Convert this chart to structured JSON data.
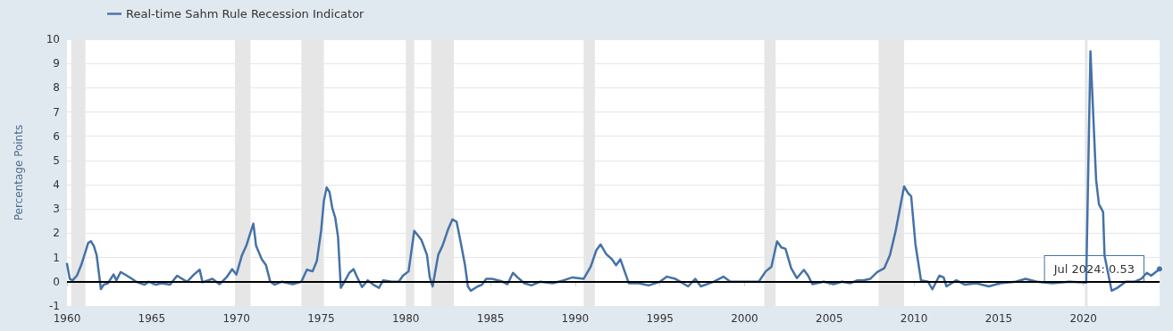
{
  "chart_data": {
    "type": "line",
    "ylabel": "Percentage Points",
    "legend": "top left",
    "grid": "y",
    "marker": "none",
    "line_style": "solid",
    "xlim": [
      "1960-01",
      "2024-07"
    ],
    "xticks": [
      "1960",
      "1965",
      "1970",
      "1975",
      "1980",
      "1985",
      "1990",
      "1995",
      "2000",
      "2005",
      "2010",
      "2015",
      "2020"
    ],
    "ylim": [
      -1,
      10
    ],
    "yticks": [
      -1,
      0,
      1,
      2,
      3,
      4,
      5,
      6,
      7,
      8,
      9,
      10
    ],
    "ref_lines": [
      {
        "axis": "y",
        "value": 0,
        "color": "#000000"
      }
    ],
    "bands": [
      {
        "axis": "x",
        "from": "1960-04",
        "to": "1961-02",
        "color": "#e6e6e6"
      },
      {
        "axis": "x",
        "from": "1969-12",
        "to": "1970-11",
        "color": "#e6e6e6"
      },
      {
        "axis": "x",
        "from": "1973-11",
        "to": "1975-03",
        "color": "#e6e6e6"
      },
      {
        "axis": "x",
        "from": "1980-01",
        "to": "1980-07",
        "color": "#e6e6e6"
      },
      {
        "axis": "x",
        "from": "1981-07",
        "to": "1982-11",
        "color": "#e6e6e6"
      },
      {
        "axis": "x",
        "from": "1990-07",
        "to": "1991-03",
        "color": "#e6e6e6"
      },
      {
        "axis": "x",
        "from": "2001-03",
        "to": "2001-11",
        "color": "#e6e6e6"
      },
      {
        "axis": "x",
        "from": "2007-12",
        "to": "2009-06",
        "color": "#e6e6e6"
      },
      {
        "axis": "x",
        "from": "2020-02",
        "to": "2020-04",
        "color": "#e6e6e6"
      }
    ],
    "annotations": [
      {
        "text": "Jul 2024: 0.53",
        "x": "2024-07",
        "y": 0.53
      }
    ],
    "x": [
      "1960-01",
      "1960-03",
      "1960-05",
      "1960-08",
      "1960-11",
      "1961-02",
      "1961-04",
      "1961-06",
      "1961-08",
      "1961-10",
      "1962-01",
      "1962-03",
      "1962-06",
      "1962-10",
      "1962-12",
      "1963-03",
      "1963-07",
      "1963-11",
      "1964-02",
      "1964-05",
      "1964-08",
      "1964-11",
      "1965-04",
      "1965-08",
      "1966-02",
      "1966-07",
      "1967-02",
      "1967-07",
      "1967-11",
      "1968-01",
      "1968-08",
      "1969-01",
      "1969-06",
      "1969-10",
      "1970-01",
      "1970-05",
      "1970-08",
      "1970-10",
      "1971-01",
      "1971-03",
      "1971-07",
      "1971-10",
      "1972-01",
      "1972-04",
      "1972-09",
      "1973-05",
      "1973-11",
      "1974-03",
      "1974-07",
      "1974-10",
      "1975-01",
      "1975-03",
      "1975-05",
      "1975-07",
      "1975-09",
      "1975-11",
      "1976-01",
      "1976-03",
      "1976-05",
      "1976-09",
      "1976-12",
      "1977-02",
      "1977-06",
      "1977-10",
      "1978-02",
      "1978-06",
      "1978-09",
      "1979-03",
      "1979-08",
      "1979-11",
      "1980-03",
      "1980-07",
      "1980-12",
      "1981-04",
      "1981-06",
      "1981-08",
      "1981-12",
      "1982-03",
      "1982-07",
      "1982-10",
      "1983-01",
      "1983-04",
      "1983-07",
      "1983-09",
      "1983-11",
      "1984-04",
      "1984-07",
      "1984-10",
      "1985-02",
      "1985-09",
      "1986-01",
      "1986-05",
      "1986-08",
      "1987-01",
      "1987-06",
      "1987-12",
      "1988-09",
      "1989-05",
      "1989-11",
      "1990-07",
      "1990-12",
      "1991-04",
      "1991-07",
      "1991-11",
      "1992-03",
      "1992-06",
      "1992-09",
      "1992-12",
      "1993-03",
      "1993-10",
      "1994-05",
      "1995-01",
      "1995-06",
      "1995-12",
      "1996-09",
      "1997-02",
      "1997-06",
      "1998-03",
      "1998-10",
      "1999-03",
      "2000-02",
      "2000-11",
      "2001-04",
      "2001-08",
      "2001-12",
      "2002-03",
      "2002-06",
      "2002-10",
      "2003-02",
      "2003-07",
      "2003-10",
      "2004-01",
      "2004-09",
      "2005-04",
      "2005-10",
      "2006-04",
      "2006-09",
      "2007-01",
      "2007-06",
      "2007-11",
      "2008-04",
      "2008-08",
      "2008-12",
      "2009-06",
      "2009-09",
      "2009-11",
      "2010-02",
      "2010-06",
      "2010-11",
      "2011-02",
      "2011-07",
      "2011-10",
      "2011-12",
      "2012-07",
      "2013-01",
      "2013-09",
      "2014-06",
      "2015-02",
      "2016-01",
      "2016-08",
      "2017-04",
      "2018-03",
      "2019-03",
      "2020-03",
      "2020-06",
      "2020-10",
      "2020-12",
      "2021-03",
      "2021-04",
      "2021-09",
      "2022-01",
      "2022-07",
      "2023-01",
      "2023-06",
      "2023-10",
      "2024-01",
      "2024-07"
    ],
    "series": [
      {
        "name": "Real-time Sahm Rule Recession Indicator",
        "color": "#4572a7",
        "values": [
          0.74,
          0.12,
          0.06,
          0.25,
          0.68,
          1.23,
          1.6,
          1.67,
          1.48,
          1.1,
          -0.3,
          -0.12,
          -0.06,
          0.3,
          0.06,
          0.4,
          0.27,
          0.12,
          0,
          -0.06,
          -0.12,
          0,
          -0.12,
          -0.06,
          -0.12,
          0.25,
          0,
          0.3,
          0.5,
          -0.02,
          0.12,
          -0.1,
          0.18,
          0.52,
          0.3,
          1.1,
          1.48,
          1.85,
          2.4,
          1.48,
          0.93,
          0.68,
          0,
          -0.12,
          0,
          -0.1,
          0,
          0.5,
          0.43,
          0.86,
          2.1,
          3.33,
          3.89,
          3.7,
          3.02,
          2.65,
          1.85,
          -0.25,
          -0.06,
          0.37,
          0.52,
          0.25,
          -0.22,
          0.06,
          -0.12,
          -0.25,
          0.06,
          0,
          0,
          0.25,
          0.43,
          2.1,
          1.73,
          1.11,
          0.18,
          -0.19,
          1.11,
          1.48,
          2.16,
          2.57,
          2.47,
          1.6,
          0.68,
          -0.19,
          -0.37,
          -0.19,
          -0.12,
          0.12,
          0.12,
          0.02,
          -0.1,
          0.37,
          0.19,
          -0.06,
          -0.15,
          0,
          -0.06,
          0.06,
          0.18,
          0.12,
          0.62,
          1.3,
          1.54,
          1.14,
          0.93,
          0.68,
          0.93,
          0.43,
          -0.06,
          -0.06,
          -0.15,
          0,
          0.21,
          0.12,
          -0.19,
          0.12,
          -0.19,
          0,
          0.21,
          0,
          0,
          0,
          0.43,
          0.62,
          1.67,
          1.42,
          1.36,
          0.56,
          0.15,
          0.49,
          0.25,
          -0.1,
          0,
          -0.1,
          0,
          -0.06,
          0.06,
          0.06,
          0.12,
          0.4,
          0.56,
          1.11,
          2.1,
          3.93,
          3.64,
          3.52,
          1.54,
          0.06,
          0,
          -0.31,
          0.25,
          0.18,
          -0.19,
          0.06,
          -0.12,
          -0.06,
          -0.19,
          -0.06,
          0,
          0.12,
          0,
          -0.06,
          0,
          -0.03,
          9.5,
          4.21,
          3.2,
          2.88,
          1.08,
          -0.37,
          -0.25,
          0,
          0,
          0.12,
          0.37,
          0.25,
          0.53
        ]
      }
    ]
  }
}
